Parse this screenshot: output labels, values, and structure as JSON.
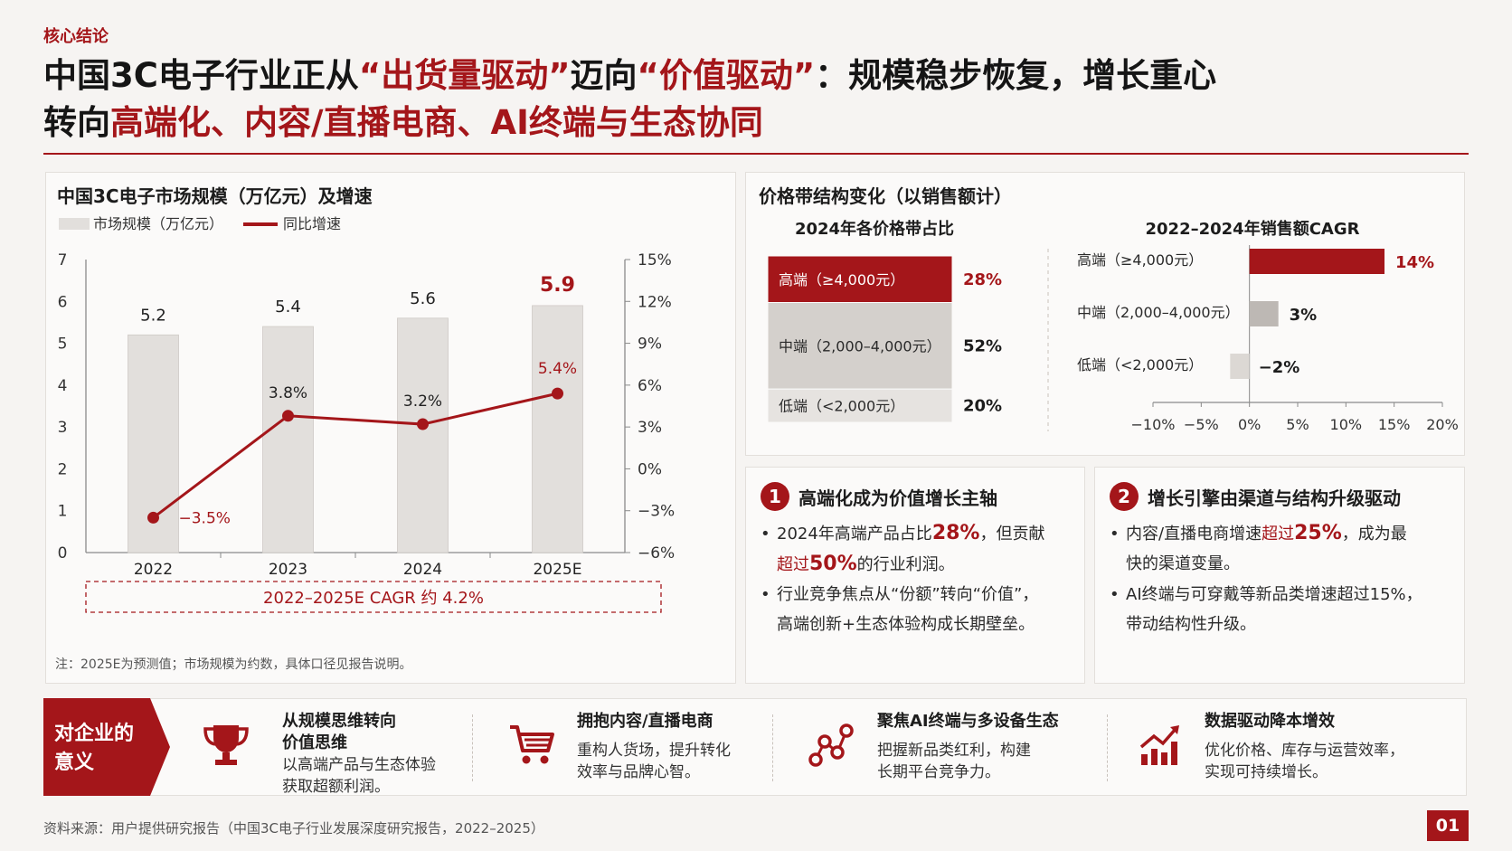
{
  "header": {
    "kicker": "核心结论",
    "line1_a": "中国3C电子行业正从",
    "line1_b": "“出货量驱动”",
    "line1_c": "迈向",
    "line1_d": "“价值驱动”",
    "line1_e": "：规模稳步恢复，增长重心",
    "line2_a": "转向",
    "line2_b": "高端化、内容/直播电商、AI终端与生态协同"
  },
  "chart_data": [
    {
      "type": "bar",
      "title": "中国3C电子市场规模（万亿元）及增速",
      "legend": [
        "市场规模（万亿元）",
        "同比增速"
      ],
      "categories": [
        "2022",
        "2023",
        "2024",
        "2025E"
      ],
      "series": [
        {
          "name": "市场规模（万亿元）",
          "type": "bar",
          "values": [
            5.2,
            5.4,
            5.6,
            5.9
          ],
          "labels": [
            "5.2",
            "5.4",
            "5.6",
            "5.9"
          ]
        },
        {
          "name": "同比增速",
          "type": "line",
          "values": [
            -3.5,
            3.8,
            3.2,
            5.4
          ],
          "labels": [
            "−3.5%",
            "3.8%",
            "3.2%",
            "5.4%"
          ]
        }
      ],
      "y_left": {
        "ticks": [
          "0",
          "1",
          "2",
          "3",
          "4",
          "5",
          "6",
          "7"
        ],
        "lim": [
          0,
          7
        ]
      },
      "y_right": {
        "ticks": [
          "−6%",
          "−3%",
          "0%",
          "3%",
          "6%",
          "9%",
          "12%",
          "15%"
        ],
        "lim": [
          -6,
          15
        ]
      },
      "cagr_note": "2022–2025E CAGR 约 4.2%",
      "footnote": "注：2025E为预测值；市场规模为约数，具体口径见报告说明。",
      "colors": {
        "bar": "#e2dfdc",
        "line": "#a4161a",
        "highlight": "#a4161a"
      }
    },
    {
      "type": "bar",
      "title": "价格带结构变化（以销售额计）",
      "subtitle": "2024年各价格带占比",
      "categories": [
        "高端（≥4,000元）",
        "中端（2,000–4,000元）",
        "低端（<2,000元）"
      ],
      "values": [
        28,
        52,
        20
      ],
      "value_labels": [
        "28%",
        "52%",
        "20%"
      ]
    },
    {
      "type": "bar",
      "subtitle": "2022–2024年销售额CAGR",
      "categories": [
        "高端（≥4,000元）",
        "中端（2,000–4,000元）",
        "低端（<2,000元）"
      ],
      "values": [
        14,
        3,
        -2
      ],
      "value_labels": [
        "14%",
        "3%",
        "−2%"
      ],
      "x_ticks": [
        "−10%",
        "−5%",
        "0%",
        "5%",
        "10%",
        "15%",
        "20%"
      ],
      "xlim": [
        -10,
        20
      ]
    }
  ],
  "callouts": [
    {
      "num": "1",
      "title": "高端化成为价值增长主轴",
      "b1_a": "2024年高端产品占比",
      "b1_hl": "28%",
      "b1_b": "，但贡献",
      "b1_c": "超过",
      "b1_hl2": "50%",
      "b1_d": "的行业利润。",
      "b2_a": "行业竞争焦点从“份额”转向“价值”，",
      "b2_b": "高端创新+生态体验构成长期壁垒。"
    },
    {
      "num": "2",
      "title": "增长引擎由渠道与结构升级驱动",
      "b1_a": "内容/直播电商增速",
      "b1_c": "超过",
      "b1_hl": "25%",
      "b1_b": "，成为最",
      "b1_d": "快的渠道变量。",
      "b2_a": "AI终端与可穿戴等新品类增速超过15%，",
      "b2_b": "带动结构性升级。"
    }
  ],
  "implications": {
    "label_1": "对企业的",
    "label_2": "意义",
    "items": [
      {
        "icon": "trophy-icon",
        "title_1": "从规模思维转向",
        "title_2": "价值思维",
        "desc_1": "以高端产品与生态体验",
        "desc_2": "获取超额利润。"
      },
      {
        "icon": "cart-icon",
        "title_1": "拥抱内容/直播电商",
        "desc_1": "重构人货场，提升转化",
        "desc_2": "效率与品牌心智。"
      },
      {
        "icon": "network-icon",
        "title_1": "聚焦AI终端与多设备生态",
        "desc_1": "把握新品类红利，构建",
        "desc_2": "长期平台竞争力。"
      },
      {
        "icon": "growth-chart-icon",
        "title_1": "数据驱动降本增效",
        "desc_1": "优化价格、库存与运营效率，",
        "desc_2": "实现可持续增长。"
      }
    ]
  },
  "footer": {
    "source": "资料来源：用户提供研究报告（中国3C电子行业发展深度研究报告，2022–2025）",
    "page": "01"
  }
}
